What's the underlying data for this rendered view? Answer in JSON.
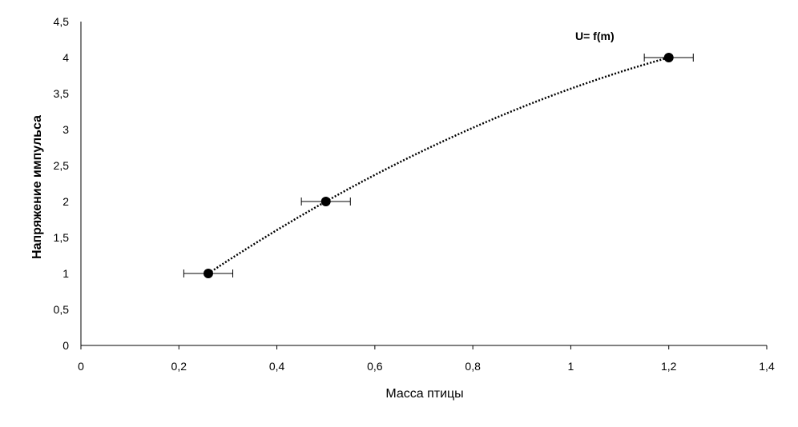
{
  "chart_data": {
    "type": "scatter",
    "xlabel": "Масса птицы",
    "ylabel": "Напряжение импульса",
    "annotation": "U= f(m)",
    "xlim": [
      0,
      1.4
    ],
    "ylim": [
      0,
      4.5
    ],
    "x_ticks": [
      "0",
      "0,2",
      "0,4",
      "0,6",
      "0,8",
      "1",
      "1,2",
      "1,4"
    ],
    "y_ticks": [
      "0",
      "0,5",
      "1",
      "1,5",
      "2",
      "2,5",
      "3",
      "3,5",
      "4",
      "4,5"
    ],
    "grid": false,
    "series": [
      {
        "points": [
          {
            "x": 0.26,
            "y": 1,
            "xerr": 0.05
          },
          {
            "x": 0.5,
            "y": 2,
            "xerr": 0.05
          },
          {
            "x": 1.2,
            "y": 4,
            "xerr": 0.05
          }
        ],
        "trendline": "polynomial",
        "color": "#000000"
      }
    ]
  }
}
